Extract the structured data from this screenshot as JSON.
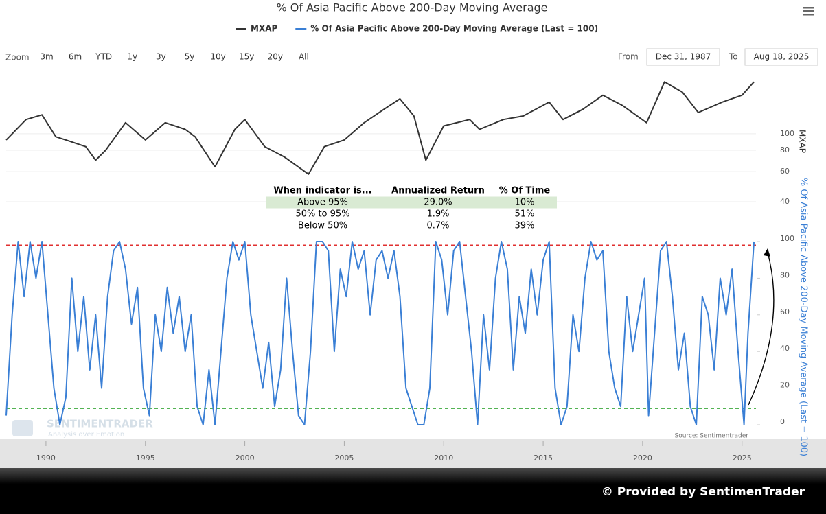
{
  "chart_data": {
    "type": "line",
    "title": "% Of Asia Pacific Above 200-Day Moving Average",
    "zoom": {
      "label": "Zoom",
      "buttons": [
        "3m",
        "6m",
        "YTD",
        "1y",
        "3y",
        "5y",
        "10y",
        "15y",
        "20y",
        "All"
      ]
    },
    "range": {
      "from_label": "From",
      "from": "Dec 31, 1987",
      "to_label": "To",
      "to": "Aug 18, 2025"
    },
    "y_label": "MXAP",
    "y2_label": "% Of Asia Pacific Above 200-Day Moving Average (Last = 100)",
    "xlim": [
      1988,
      2025.7
    ],
    "xticks": [
      1990,
      1995,
      2000,
      2005,
      2010,
      2015,
      2020,
      2025
    ],
    "ylim": [
      40,
      215
    ],
    "ylog": true,
    "yticks": [
      40,
      60,
      80,
      100
    ],
    "y2lim": [
      0,
      100
    ],
    "y2ticks": [
      0,
      20,
      40,
      60,
      80,
      100
    ],
    "reference_lines": [
      {
        "value": 98,
        "color": "#e03030",
        "axis": "y2"
      },
      {
        "value": 9,
        "color": "#1a9a1a",
        "axis": "y2"
      }
    ],
    "series": [
      {
        "name": "MXAP",
        "color": "#333333",
        "axis": "y",
        "x": [
          1988.0,
          1989.0,
          1989.8,
          1990.5,
          1991.0,
          1992.0,
          1992.5,
          1993.0,
          1994.0,
          1995.0,
          1996.0,
          1997.0,
          1997.5,
          1998.5,
          1999.5,
          2000.0,
          2001.0,
          2002.0,
          2003.2,
          2004.0,
          2005.0,
          2006.0,
          2007.0,
          2007.8,
          2008.5,
          2009.1,
          2010.0,
          2011.3,
          2011.8,
          2013.0,
          2014.0,
          2015.3,
          2016.0,
          2017.0,
          2018.0,
          2019.0,
          2020.2,
          2021.1,
          2022.0,
          2022.8,
          2024.0,
          2025.0,
          2025.6
        ],
        "values": [
          92,
          121,
          129,
          96,
          92,
          84,
          70,
          80,
          116,
          92,
          116,
          106,
          96,
          64,
          106,
          121,
          84,
          73,
          58,
          84,
          92,
          116,
          139,
          160,
          127,
          70,
          111,
          121,
          106,
          121,
          127,
          153,
          121,
          139,
          168,
          146,
          116,
          201,
          175,
          133,
          153,
          168,
          201
        ]
      },
      {
        "name": "% Of Asia Pacific Above 200-Day Moving Average (Last = 100)",
        "color": "#3a7fd5",
        "axis": "y2",
        "x": [
          1988.0,
          1988.3,
          1988.6,
          1988.9,
          1989.2,
          1989.5,
          1989.8,
          1990.1,
          1990.4,
          1990.7,
          1991.0,
          1991.3,
          1991.6,
          1991.9,
          1992.2,
          1992.5,
          1992.8,
          1993.1,
          1993.4,
          1993.7,
          1994.0,
          1994.3,
          1994.6,
          1994.9,
          1995.2,
          1995.5,
          1995.8,
          1996.1,
          1996.4,
          1996.7,
          1997.0,
          1997.3,
          1997.6,
          1997.9,
          1998.2,
          1998.5,
          1998.8,
          1999.1,
          1999.4,
          1999.7,
          2000.0,
          2000.3,
          2000.6,
          2000.9,
          2001.2,
          2001.5,
          2001.8,
          2002.1,
          2002.4,
          2002.7,
          2003.0,
          2003.3,
          2003.6,
          2003.9,
          2004.2,
          2004.5,
          2004.8,
          2005.1,
          2005.4,
          2005.7,
          2006.0,
          2006.3,
          2006.6,
          2006.9,
          2007.2,
          2007.5,
          2007.8,
          2008.1,
          2008.4,
          2008.7,
          2009.0,
          2009.3,
          2009.6,
          2009.9,
          2010.2,
          2010.5,
          2010.8,
          2011.1,
          2011.4,
          2011.7,
          2012.0,
          2012.3,
          2012.6,
          2012.9,
          2013.2,
          2013.5,
          2013.8,
          2014.1,
          2014.4,
          2014.7,
          2015.0,
          2015.3,
          2015.6,
          2015.9,
          2016.2,
          2016.5,
          2016.8,
          2017.1,
          2017.4,
          2017.7,
          2018.0,
          2018.3,
          2018.6,
          2018.9,
          2019.2,
          2019.5,
          2019.8,
          2020.1,
          2020.3,
          2020.6,
          2020.9,
          2021.2,
          2021.5,
          2021.8,
          2022.1,
          2022.4,
          2022.7,
          2023.0,
          2023.3,
          2023.6,
          2023.9,
          2024.2,
          2024.5,
          2024.8,
          2025.1,
          2025.3,
          2025.6
        ],
        "values": [
          5,
          60,
          100,
          70,
          100,
          80,
          100,
          60,
          20,
          0,
          15,
          80,
          40,
          70,
          30,
          60,
          20,
          70,
          95,
          100,
          85,
          55,
          75,
          20,
          5,
          60,
          40,
          75,
          50,
          70,
          40,
          60,
          10,
          0,
          30,
          0,
          40,
          80,
          100,
          90,
          100,
          60,
          40,
          20,
          45,
          10,
          30,
          80,
          40,
          5,
          0,
          40,
          100,
          100,
          95,
          40,
          85,
          70,
          100,
          85,
          95,
          60,
          90,
          95,
          80,
          95,
          70,
          20,
          10,
          0,
          0,
          20,
          100,
          90,
          60,
          95,
          100,
          70,
          40,
          0,
          60,
          30,
          80,
          100,
          85,
          30,
          70,
          50,
          85,
          60,
          90,
          100,
          20,
          0,
          10,
          60,
          40,
          80,
          100,
          90,
          95,
          40,
          20,
          10,
          70,
          40,
          60,
          80,
          5,
          50,
          95,
          100,
          70,
          30,
          50,
          10,
          0,
          70,
          60,
          30,
          80,
          60,
          85,
          40,
          0,
          50,
          100
        ]
      }
    ],
    "table": {
      "columns": [
        "When indicator is...",
        "Annualized Return",
        "% Of Time"
      ],
      "rows": [
        [
          "Above 95%",
          "29.0%",
          "10%"
        ],
        [
          "50% to 95%",
          "1.9%",
          "51%"
        ],
        [
          "Below 50%",
          "0.7%",
          "39%"
        ]
      ],
      "highlight_color": "#d9ead3"
    },
    "watermark": [
      "SENTIMENTRADER",
      "Analysis over Emotion"
    ],
    "source": "Source: Sentimentrader",
    "credit": "© Provided by SentimenTrader"
  }
}
